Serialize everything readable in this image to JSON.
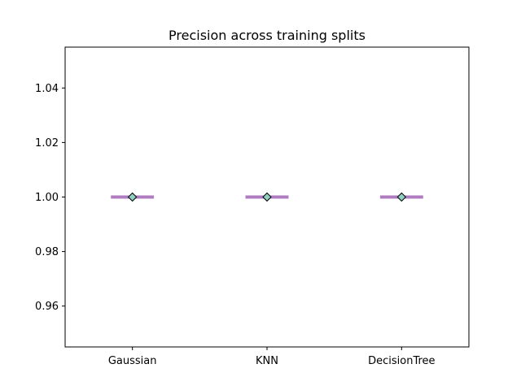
{
  "chart_data": {
    "type": "box",
    "title": "Precision across training splits",
    "xlabel": "",
    "ylabel": "",
    "categories": [
      "Gaussian",
      "KNN",
      "DecisionTree"
    ],
    "series": [
      {
        "median": [
          1.0,
          1.0,
          1.0
        ],
        "mean": [
          1.0,
          1.0,
          1.0
        ],
        "min": [
          1.0,
          1.0,
          1.0
        ],
        "max": [
          1.0,
          1.0,
          1.0
        ],
        "q1": [
          1.0,
          1.0,
          1.0
        ],
        "q3": [
          1.0,
          1.0,
          1.0
        ]
      }
    ],
    "ylim": [
      0.945,
      1.055
    ],
    "yticks": [
      0.96,
      0.98,
      1.0,
      1.02,
      1.04
    ],
    "ytick_labels": [
      "0.96",
      "0.98",
      "1.00",
      "1.02",
      "1.04"
    ],
    "grid": false,
    "colors": {
      "median": "#b07cc0",
      "mean_marker": "#8fd0c0",
      "marker_edge": "#000000",
      "axes": "#000000"
    }
  }
}
